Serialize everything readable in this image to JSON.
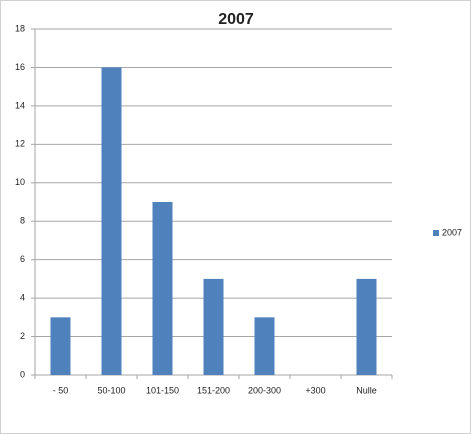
{
  "chart_data": {
    "type": "bar",
    "title": "2007",
    "categories": [
      "- 50",
      "50-100",
      "101-150",
      "151-200",
      "200-300",
      "+300",
      "Nulle"
    ],
    "series": [
      {
        "name": "2007",
        "color": "#4f81bd",
        "values": [
          3,
          16,
          9,
          5,
          3,
          0,
          5
        ]
      }
    ],
    "ylim": [
      0,
      18
    ],
    "yticks": [
      0,
      2,
      4,
      6,
      8,
      10,
      12,
      14,
      16,
      18
    ],
    "grid": true,
    "legend": "right"
  }
}
